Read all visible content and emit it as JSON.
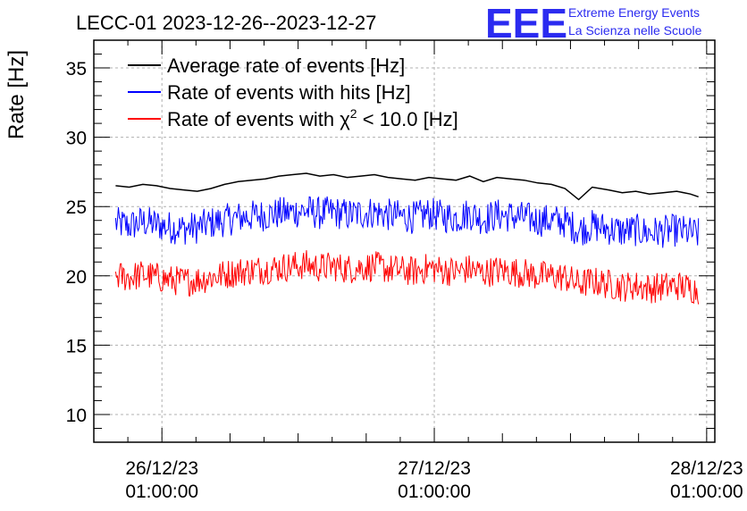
{
  "chart_data": {
    "type": "line",
    "title": "LECC-01 2023-12-26--2023-12-27",
    "ylabel": "Rate [Hz]",
    "xlabel": "",
    "ylim": [
      8,
      37
    ],
    "xlim": [
      -0.25,
      2.03
    ],
    "grid": true,
    "legend_position": "top-left",
    "x_ticks": [
      {
        "x": 0,
        "line1": "26/12/23",
        "line2": "01:00:00"
      },
      {
        "x": 1,
        "line1": "27/12/23",
        "line2": "01:00:00"
      },
      {
        "x": 2,
        "line1": "28/12/23",
        "line2": "01:00:00"
      }
    ],
    "y_ticks": [
      10,
      15,
      20,
      25,
      30,
      35
    ],
    "legend": [
      {
        "label": "Average rate of events [Hz]",
        "color": "#000000"
      },
      {
        "label": "Rate of events with hits [Hz]",
        "color": "#0000ff"
      },
      {
        "label_prefix": "Rate of events with ",
        "label_symbol": "χ",
        "label_sup": "2",
        "label_suffix": " < 10.0 [Hz]",
        "color": "#ff0000"
      }
    ],
    "series": [
      {
        "name": "Average rate of events [Hz]",
        "color": "#000000",
        "x": [
          -0.17,
          -0.12,
          -0.07,
          -0.02,
          0.03,
          0.08,
          0.13,
          0.18,
          0.23,
          0.28,
          0.33,
          0.38,
          0.43,
          0.48,
          0.53,
          0.58,
          0.63,
          0.68,
          0.73,
          0.78,
          0.83,
          0.88,
          0.93,
          0.98,
          1.03,
          1.08,
          1.13,
          1.18,
          1.23,
          1.28,
          1.33,
          1.38,
          1.43,
          1.48,
          1.53,
          1.58,
          1.64,
          1.69,
          1.74,
          1.79,
          1.84,
          1.89,
          1.94,
          1.97
        ],
        "values": [
          26.5,
          26.4,
          26.6,
          26.5,
          26.3,
          26.2,
          26.1,
          26.3,
          26.6,
          26.8,
          26.9,
          27.0,
          27.2,
          27.3,
          27.4,
          27.2,
          27.3,
          27.1,
          27.2,
          27.3,
          27.1,
          27.0,
          26.9,
          27.1,
          27.0,
          26.9,
          27.2,
          26.8,
          27.1,
          27.0,
          26.9,
          26.7,
          26.6,
          26.3,
          25.5,
          26.4,
          26.2,
          26.0,
          26.1,
          25.9,
          26.0,
          26.1,
          25.9,
          25.7
        ]
      },
      {
        "name": "Rate of events with hits [Hz]",
        "color": "#0000ff",
        "x": [
          -0.17,
          -0.12,
          -0.07,
          -0.02,
          0.03,
          0.08,
          0.13,
          0.18,
          0.23,
          0.28,
          0.33,
          0.38,
          0.43,
          0.48,
          0.53,
          0.58,
          0.63,
          0.68,
          0.73,
          0.78,
          0.83,
          0.88,
          0.93,
          0.98,
          1.03,
          1.08,
          1.13,
          1.18,
          1.23,
          1.28,
          1.33,
          1.38,
          1.43,
          1.48,
          1.53,
          1.58,
          1.64,
          1.69,
          1.74,
          1.79,
          1.84,
          1.89,
          1.94,
          1.97
        ],
        "values": [
          23.8,
          23.6,
          23.9,
          23.7,
          23.5,
          23.4,
          23.5,
          23.8,
          24.0,
          24.2,
          24.3,
          24.4,
          24.5,
          24.6,
          24.7,
          24.5,
          24.6,
          24.4,
          24.5,
          24.6,
          24.4,
          24.3,
          24.2,
          24.5,
          24.3,
          24.2,
          24.5,
          24.1,
          24.4,
          24.3,
          24.2,
          24.0,
          24.0,
          23.9,
          23.3,
          23.6,
          23.4,
          23.2,
          23.3,
          23.1,
          23.2,
          23.3,
          23.1,
          23.0
        ],
        "noise": 1.2
      },
      {
        "name": "Rate of events with χ² < 10.0 [Hz]",
        "color": "#ff0000",
        "x": [
          -0.17,
          -0.12,
          -0.07,
          -0.02,
          0.03,
          0.08,
          0.13,
          0.18,
          0.23,
          0.28,
          0.33,
          0.38,
          0.43,
          0.48,
          0.53,
          0.58,
          0.63,
          0.68,
          0.73,
          0.78,
          0.83,
          0.88,
          0.93,
          0.98,
          1.03,
          1.08,
          1.13,
          1.18,
          1.23,
          1.28,
          1.33,
          1.38,
          1.43,
          1.48,
          1.53,
          1.58,
          1.64,
          1.69,
          1.74,
          1.79,
          1.84,
          1.89,
          1.94,
          1.97
        ],
        "values": [
          20.0,
          19.9,
          20.1,
          19.9,
          19.7,
          19.6,
          19.7,
          19.9,
          20.1,
          20.3,
          20.4,
          20.5,
          20.6,
          20.7,
          20.8,
          20.6,
          20.7,
          20.5,
          20.6,
          20.7,
          20.5,
          20.4,
          20.3,
          20.6,
          20.4,
          20.3,
          20.5,
          20.2,
          20.4,
          20.3,
          20.2,
          20.0,
          20.0,
          19.9,
          19.4,
          19.6,
          19.4,
          19.2,
          19.3,
          19.1,
          19.2,
          19.3,
          19.1,
          19.0
        ],
        "noise": 1.1
      }
    ]
  },
  "logo": {
    "mark": "EEE",
    "line1": "Extreme Energy Events",
    "line2": "La Scienza nelle Scuole"
  }
}
